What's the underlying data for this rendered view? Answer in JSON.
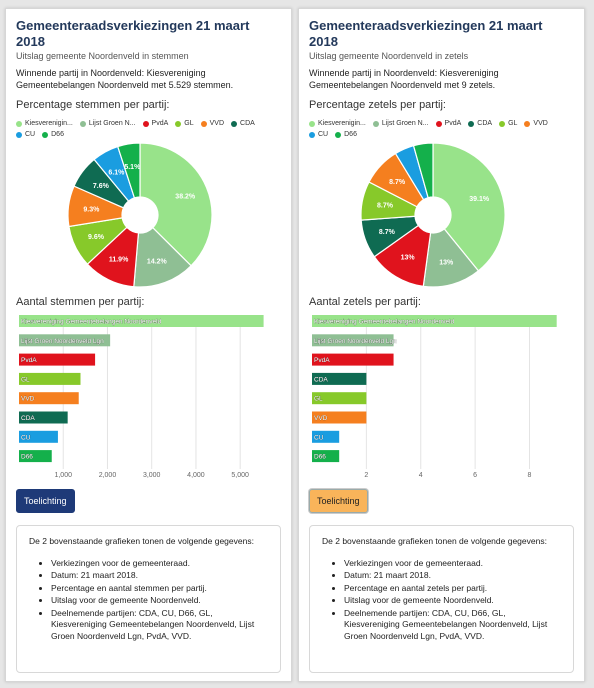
{
  "panels": [
    {
      "title": "Gemeenteraadsverkiezingen 21 maart 2018",
      "subtitle": "Uitslag gemeente Noordenveld in stemmen",
      "winner": "Winnende partij in Noordenveld: Kiesvereniging Gemeentebelangen Noordenveld met 5.529 stemmen.",
      "pie_title": "Percentage stemmen per partij:",
      "bar_title": "Aantal stemmen per partij:",
      "button_label": "Toelichting",
      "info_intro": "De 2 bovenstaande grafieken tonen de volgende gegevens:",
      "info_items": [
        "Verkiezingen voor de gemeenteraad.",
        "Datum: 21 maart 2018.",
        "Percentage en aantal stemmen per partij.",
        "Uitslag voor de gemeente Noordenveld.",
        "Deelnemende partijen: CDA, CU, D66, GL, Kiesvereniging Gemeentebelangen Noordenveld, Lijst Groen Noordenveld Lgn, PvdA, VVD."
      ]
    },
    {
      "title": "Gemeenteraadsverkiezingen 21 maart 2018",
      "subtitle": "Uitslag gemeente Noordenveld in zetels",
      "winner": "Winnende partij in Noordenveld: Kiesvereniging Gemeentebelangen Noordenveld met 9 zetels.",
      "pie_title": "Percentage zetels per partij:",
      "bar_title": "Aantal zetels per partij:",
      "button_label": "Toelichting",
      "info_intro": "De 2 bovenstaande grafieken tonen de volgende gegevens:",
      "info_items": [
        "Verkiezingen voor de gemeenteraad.",
        "Datum: 21 maart 2018.",
        "Percentage en aantal zetels per partij.",
        "Uitslag voor de gemeente Noordenveld.",
        "Deelnemende partijen: CDA, CU, D66, GL, Kiesvereniging Gemeentebelangen Noordenveld, Lijst Groen Noordenveld Lgn, PvdA, VVD."
      ]
    }
  ],
  "chart_data": [
    {
      "type": "pie",
      "style": "donut",
      "legend": [
        {
          "label": "Kiesverenigin...",
          "color": "#98e38a"
        },
        {
          "label": "Lijst Groen N...",
          "color": "#8fbf94"
        },
        {
          "label": "PvdA",
          "color": "#e0131d"
        },
        {
          "label": "GL",
          "color": "#87c92a"
        },
        {
          "label": "VVD",
          "color": "#f57f1f"
        },
        {
          "label": "CDA",
          "color": "#0f6b52"
        },
        {
          "label": "CU",
          "color": "#1a9de0"
        },
        {
          "label": "D66",
          "color": "#14b04b"
        }
      ],
      "slices": [
        {
          "value": 38.2,
          "label": "38.2%",
          "color": "#98e38a"
        },
        {
          "value": 14.2,
          "label": "14.2%",
          "color": "#8fbf94"
        },
        {
          "value": 11.9,
          "label": "11.9%",
          "color": "#e0131d"
        },
        {
          "value": 9.6,
          "label": "9.6%",
          "color": "#87c92a"
        },
        {
          "value": 9.3,
          "label": "9.3%",
          "color": "#f57f1f"
        },
        {
          "value": 7.6,
          "label": "7.6%",
          "color": "#0f6b52"
        },
        {
          "value": 6.1,
          "label": "6.1%",
          "color": "#1a9de0"
        },
        {
          "value": 5.1,
          "label": "5.1%",
          "color": "#14b04b"
        }
      ]
    },
    {
      "type": "bar",
      "orientation": "horizontal",
      "categories": [
        "Kiesvereniging Gemeentebelangen Noordenveld",
        "Lijst Groen Noordenveld Lgn",
        "PvdA",
        "GL",
        "VVD",
        "CDA",
        "CU",
        "D66"
      ],
      "values": [
        5529,
        2060,
        1720,
        1390,
        1350,
        1100,
        880,
        740
      ],
      "colors": [
        "#98e38a",
        "#8fbf94",
        "#e0131d",
        "#87c92a",
        "#f57f1f",
        "#0f6b52",
        "#1a9de0",
        "#14b04b"
      ],
      "xlim": [
        0,
        5900
      ],
      "xticks": [
        1000,
        2000,
        3000,
        4000,
        5000
      ],
      "xtick_labels": [
        "1,000",
        "2,000",
        "3,000",
        "4,000",
        "5,000"
      ]
    },
    {
      "type": "pie",
      "style": "donut",
      "legend": [
        {
          "label": "Kiesverenigin...",
          "color": "#98e38a"
        },
        {
          "label": "Lijst Groen N...",
          "color": "#8fbf94"
        },
        {
          "label": "PvdA",
          "color": "#e0131d"
        },
        {
          "label": "CDA",
          "color": "#0f6b52"
        },
        {
          "label": "GL",
          "color": "#87c92a"
        },
        {
          "label": "VVD",
          "color": "#f57f1f"
        },
        {
          "label": "CU",
          "color": "#1a9de0"
        },
        {
          "label": "D66",
          "color": "#14b04b"
        }
      ],
      "slices": [
        {
          "value": 39.1,
          "label": "39.1%",
          "color": "#98e38a"
        },
        {
          "value": 13,
          "label": "13%",
          "color": "#8fbf94"
        },
        {
          "value": 13,
          "label": "13%",
          "color": "#e0131d"
        },
        {
          "value": 8.7,
          "label": "8.7%",
          "color": "#0f6b52"
        },
        {
          "value": 8.7,
          "label": "8.7%",
          "color": "#87c92a"
        },
        {
          "value": 8.7,
          "label": "8.7%",
          "color": "#f57f1f"
        },
        {
          "value": 4.35,
          "label": "",
          "color": "#1a9de0"
        },
        {
          "value": 4.35,
          "label": "",
          "color": "#14b04b"
        }
      ]
    },
    {
      "type": "bar",
      "orientation": "horizontal",
      "categories": [
        "Kiesvereniging Gemeentebelangen Noordenveld",
        "Lijst Groen Noordenveld Lgn",
        "PvdA",
        "CDA",
        "GL",
        "VVD",
        "CU",
        "D66"
      ],
      "values": [
        9,
        3,
        3,
        2,
        2,
        2,
        1,
        1
      ],
      "colors": [
        "#98e38a",
        "#8fbf94",
        "#e0131d",
        "#0f6b52",
        "#87c92a",
        "#f57f1f",
        "#1a9de0",
        "#14b04b"
      ],
      "xlim": [
        0,
        9.6
      ],
      "xticks": [
        2,
        4,
        6,
        8
      ],
      "xtick_labels": [
        "2",
        "4",
        "6",
        "8"
      ]
    }
  ]
}
